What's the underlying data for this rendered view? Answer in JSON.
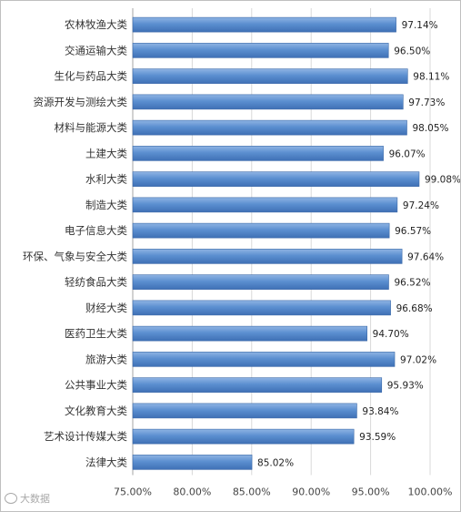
{
  "chart_data": {
    "type": "bar",
    "orientation": "horizontal",
    "categories": [
      "农林牧渔大类",
      "交通运输大类",
      "生化与药品大类",
      "资源开发与测绘大类",
      "材料与能源大类",
      "土建大类",
      "水利大类",
      "制造大类",
      "电子信息大类",
      "环保、气象与安全大类",
      "轻纺食品大类",
      "财经大类",
      "医药卫生大类",
      "旅游大类",
      "公共事业大类",
      "文化教育大类",
      "艺术设计传媒大类",
      "法律大类"
    ],
    "values": [
      97.14,
      96.5,
      98.11,
      97.73,
      98.05,
      96.07,
      99.08,
      97.24,
      96.57,
      97.64,
      96.52,
      96.68,
      94.7,
      97.02,
      95.93,
      93.84,
      93.59,
      85.02
    ],
    "value_labels": [
      "97.14%",
      "96.50%",
      "98.11%",
      "97.73%",
      "98.05%",
      "96.07%",
      "99.08%",
      "97.24%",
      "96.57%",
      "97.64%",
      "96.52%",
      "96.68%",
      "94.70%",
      "97.02%",
      "95.93%",
      "93.84%",
      "93.59%",
      "85.02%"
    ],
    "x_ticks": [
      75,
      80,
      85,
      90,
      95,
      100
    ],
    "x_tick_labels": [
      "75.00%",
      "80.00%",
      "85.00%",
      "90.00%",
      "95.00%",
      "100.00%"
    ],
    "xlim": [
      75,
      100
    ],
    "grid": "vertical",
    "legend": "none",
    "title": "",
    "xlabel": "",
    "ylabel": "",
    "colors": {
      "bar_top": "#8fb4e3",
      "bar_mid": "#5b8fd0",
      "bar_bottom": "#3f70b5",
      "bar_edge": "#3a68a8"
    }
  },
  "watermark": {
    "text": "大数据"
  }
}
